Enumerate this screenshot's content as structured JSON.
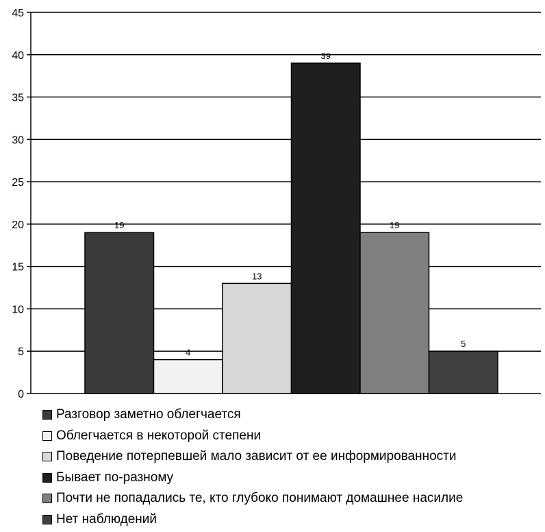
{
  "chart_data": {
    "type": "bar",
    "categories": [
      "Разговор заметно облегчается",
      "Облегчается в некоторой степени",
      "Поведение потерпевшей мало зависит от ее информированности",
      "Бывает по-разному",
      "Почти не попадались те, кто глубоко понимают домашнее насилие",
      "Нет наблюдений"
    ],
    "values": [
      19,
      4,
      13,
      39,
      19,
      5
    ],
    "colors": [
      "#3a3a3a",
      "#f2f2f2",
      "#d8d8d8",
      "#1f1f1f",
      "#808080",
      "#404040"
    ],
    "title": "",
    "xlabel": "",
    "ylabel": "",
    "ylim": [
      0,
      45
    ],
    "yticks": [
      "0",
      "5",
      "10",
      "15",
      "20",
      "25",
      "30",
      "35",
      "40",
      "45"
    ],
    "data_labels": [
      "19",
      "4",
      "13",
      "39",
      "19",
      "5"
    ],
    "grid": "horizontal",
    "legend_position": "bottom"
  }
}
